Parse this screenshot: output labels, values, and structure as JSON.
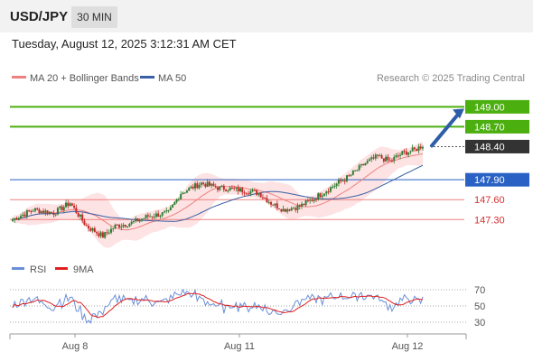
{
  "header": {
    "symbol": "USD/JPY",
    "timeframe": "30 MIN",
    "datetime": "Tuesday, August 12, 2025 3:12:31 AM CET"
  },
  "legend": {
    "ma20": "MA 20 + Bollinger Bands",
    "ma50": "MA 50",
    "credit": "Research © 2025 Trading Central",
    "rsi": "RSI",
    "rsi_ma": "9MA"
  },
  "colors": {
    "ma20": "#f08080",
    "bollinger_fill": "#fde3e3",
    "ma50": "#3a5fa6",
    "candle_up": "#2e7d32",
    "candle_down": "#c62828",
    "resistance": "#4caf10",
    "pivot": "#2962c4",
    "support": "#f08080",
    "current": "#333333",
    "arrow": "#2e5ea8",
    "rsi": "#6a8fd8",
    "rsi_ma": "#e02020"
  },
  "chart_data": [
    {
      "type": "candlestick",
      "title": "USD/JPY",
      "timeframe": "30 MIN",
      "x_tick_labels": [
        "Aug 8",
        "Aug 11",
        "Aug 12"
      ],
      "ylim": [
        146.8,
        149.25
      ],
      "levels": [
        {
          "label": "149.00",
          "value": 149.0,
          "kind": "resistance"
        },
        {
          "label": "148.70",
          "value": 148.7,
          "kind": "resistance"
        },
        {
          "label": "148.40",
          "value": 148.4,
          "kind": "current"
        },
        {
          "label": "147.90",
          "value": 147.9,
          "kind": "pivot"
        },
        {
          "label": "147.60",
          "value": 147.6,
          "kind": "support"
        },
        {
          "label": "147.30",
          "value": 147.3,
          "kind": "support"
        }
      ],
      "forecast_arrow": {
        "from": 148.4,
        "to": 149.0
      },
      "series": [
        {
          "name": "MA 20 + Bollinger Bands"
        },
        {
          "name": "MA 50"
        }
      ]
    },
    {
      "type": "line",
      "title": "RSI",
      "ylim": [
        20,
        80
      ],
      "y_ticks": [
        "70",
        "50",
        "30"
      ],
      "series": [
        {
          "name": "RSI"
        },
        {
          "name": "9MA"
        }
      ]
    }
  ]
}
